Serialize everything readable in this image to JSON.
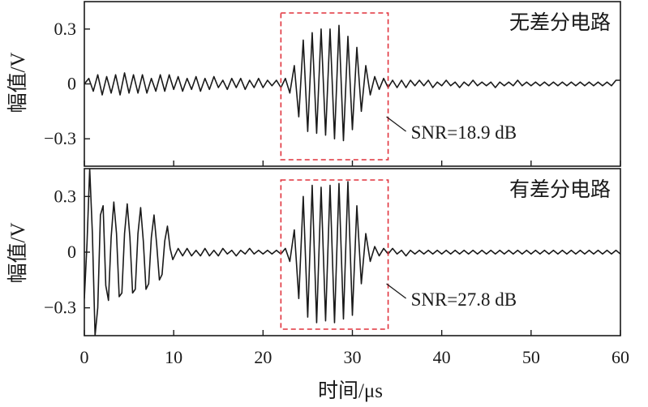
{
  "chart_data": [
    {
      "type": "line",
      "panel_label": "无差分电路",
      "ylabel": "幅值/V",
      "ylim": [
        -0.45,
        0.45
      ],
      "yticks": [
        {
          "value": 0.3,
          "label": "0.3"
        },
        {
          "value": 0,
          "label": "0"
        },
        {
          "value": -0.3,
          "label": "−0.3"
        }
      ],
      "xlim": [
        0,
        60
      ],
      "roi": {
        "x_range": [
          22,
          34
        ],
        "color": "#e0323c"
      },
      "annotation": {
        "label": "SNR=18.9 dB",
        "snr_db": 18.9
      },
      "series": [
        {
          "x": [
            0,
            0.5,
            1,
            1.5,
            2,
            2.5,
            3,
            3.5,
            4,
            4.5,
            5,
            5.5,
            6,
            6.5,
            7,
            7.5,
            8,
            8.5,
            9,
            9.5,
            10,
            10.5,
            11,
            11.5,
            12,
            12.5,
            13,
            13.5,
            14,
            14.5,
            15,
            15.5,
            16,
            16.5,
            17,
            17.5,
            18,
            18.5,
            19,
            19.5,
            20,
            20.5,
            21,
            21.5,
            22,
            22.5,
            23,
            23.5,
            24,
            24.5,
            25,
            25.5,
            26,
            26.5,
            27,
            27.5,
            28,
            28.5,
            29,
            29.5,
            30,
            30.5,
            31,
            31.5,
            32,
            32.5,
            33,
            33.5,
            34,
            34.5,
            35,
            35.5,
            36,
            36.5,
            37,
            37.5,
            38,
            38.5,
            39,
            39.5,
            40,
            40.5,
            41,
            41.5,
            42,
            42.5,
            43,
            43.5,
            44,
            44.5,
            45,
            45.5,
            46,
            46.5,
            47,
            47.5,
            48,
            48.5,
            49,
            49.5,
            50,
            50.5,
            51,
            51.5,
            52,
            52.5,
            53,
            53.5,
            54,
            54.5,
            55,
            55.5,
            56,
            56.5,
            57,
            57.5,
            58,
            58.5,
            59,
            59.5,
            60
          ],
          "y": [
            0,
            0.03,
            -0.04,
            0.05,
            -0.06,
            0.04,
            -0.05,
            0.05,
            -0.06,
            0.06,
            -0.05,
            0.05,
            -0.05,
            0.05,
            -0.05,
            0.03,
            -0.04,
            0.05,
            -0.04,
            0.05,
            -0.03,
            0.04,
            -0.04,
            0.03,
            -0.03,
            0.04,
            -0.04,
            0.03,
            -0.03,
            0.04,
            -0.02,
            0.02,
            -0.03,
            0.03,
            -0.02,
            0.03,
            -0.03,
            0.02,
            -0.02,
            0.03,
            -0.02,
            0.02,
            -0.01,
            0.02,
            -0.02,
            0.03,
            -0.05,
            0.1,
            -0.18,
            0.24,
            -0.26,
            0.28,
            -0.27,
            0.3,
            -0.28,
            0.3,
            -0.3,
            0.32,
            -0.31,
            0.26,
            -0.25,
            0.2,
            -0.15,
            0.1,
            -0.06,
            0.04,
            -0.03,
            0.03,
            -0.02,
            0.02,
            -0.02,
            0.02,
            -0.02,
            0.02,
            -0.01,
            0.02,
            -0.01,
            0.02,
            -0.02,
            0.01,
            -0.01,
            0.02,
            -0.01,
            0.01,
            -0.02,
            0.01,
            -0.01,
            0.02,
            -0.01,
            0.01,
            -0.01,
            0.01,
            -0.02,
            0.01,
            -0.01,
            0.01,
            -0.01,
            0.02,
            -0.01,
            0.01,
            -0.01,
            0.01,
            -0.01,
            0.01,
            -0.01,
            0.01,
            -0.01,
            0.01,
            -0.01,
            0.01,
            -0.01,
            0.01,
            -0.01,
            0.01,
            -0.01,
            0.01,
            -0.01,
            0.01,
            -0.01,
            0.02,
            0.02
          ]
        }
      ]
    },
    {
      "type": "line",
      "panel_label": "有差分电路",
      "ylabel": "幅值/V",
      "ylim": [
        -0.45,
        0.45
      ],
      "yticks": [
        {
          "value": 0.3,
          "label": "0.3"
        },
        {
          "value": 0,
          "label": "0"
        },
        {
          "value": -0.3,
          "label": "−0.3"
        }
      ],
      "xlim": [
        0,
        60
      ],
      "xlabel": "时间/μs",
      "xticks": [
        {
          "value": 0,
          "label": "0"
        },
        {
          "value": 10,
          "label": "10"
        },
        {
          "value": 20,
          "label": "20"
        },
        {
          "value": 30,
          "label": "30"
        },
        {
          "value": 40,
          "label": "40"
        },
        {
          "value": 50,
          "label": "50"
        },
        {
          "value": 60,
          "label": "60"
        }
      ],
      "roi": {
        "x_range": [
          22,
          34
        ],
        "color": "#e0323c"
      },
      "annotation": {
        "label": "SNR=27.8 dB",
        "snr_db": 27.8
      },
      "series": [
        {
          "x": [
            0,
            0.3,
            0.6,
            0.9,
            1.2,
            1.5,
            1.8,
            2.1,
            2.4,
            2.7,
            3,
            3.3,
            3.6,
            3.9,
            4.2,
            4.5,
            4.8,
            5.1,
            5.4,
            5.7,
            6,
            6.3,
            6.6,
            6.9,
            7.2,
            7.5,
            7.8,
            8.1,
            8.4,
            8.7,
            9,
            9.3,
            9.6,
            9.9,
            10.5,
            11,
            11.5,
            12,
            12.5,
            13,
            13.5,
            14,
            14.5,
            15,
            15.5,
            16,
            16.5,
            17,
            17.5,
            18,
            18.5,
            19,
            19.5,
            20,
            20.5,
            21,
            21.5,
            22,
            22.5,
            23,
            23.5,
            24,
            24.5,
            25,
            25.5,
            26,
            26.5,
            27,
            27.5,
            28,
            28.5,
            29,
            29.5,
            30,
            30.5,
            31,
            31.5,
            32,
            32.5,
            33,
            33.5,
            34,
            34.5,
            35,
            35.5,
            36,
            36.5,
            37,
            37.5,
            38,
            38.5,
            39,
            39.5,
            40,
            40.5,
            41,
            41.5,
            42,
            42.5,
            43,
            43.5,
            44,
            44.5,
            45,
            45.5,
            46,
            46.5,
            47,
            47.5,
            48,
            48.5,
            49,
            49.5,
            50,
            50.5,
            51,
            51.5,
            52,
            52.5,
            53,
            53.5,
            54,
            54.5,
            55,
            55.5,
            56,
            56.5,
            57,
            57.5,
            58,
            58.5,
            59,
            59.5,
            60
          ],
          "y": [
            -0.25,
            0.05,
            0.45,
            0.1,
            -0.45,
            -0.3,
            0.2,
            0.25,
            -0.18,
            -0.26,
            0.08,
            0.27,
            0.1,
            -0.24,
            -0.22,
            0.1,
            0.26,
            0.08,
            -0.22,
            -0.2,
            0.1,
            0.24,
            0.06,
            -0.2,
            -0.17,
            0.08,
            0.2,
            0.04,
            -0.15,
            -0.12,
            0.06,
            0.14,
            0.02,
            -0.04,
            0.02,
            -0.02,
            0.02,
            -0.02,
            0.01,
            -0.02,
            0.02,
            -0.02,
            0.01,
            -0.02,
            0.02,
            -0.01,
            0.01,
            -0.02,
            0.01,
            -0.01,
            0.02,
            -0.01,
            0.01,
            -0.01,
            0.01,
            -0.01,
            0.01,
            -0.01,
            0.02,
            -0.05,
            0.12,
            -0.25,
            0.3,
            -0.35,
            0.36,
            -0.38,
            0.35,
            -0.37,
            0.36,
            -0.38,
            0.37,
            -0.36,
            0.38,
            -0.34,
            0.25,
            -0.17,
            0.1,
            -0.05,
            0.03,
            -0.02,
            0.02,
            -0.01,
            0.02,
            -0.01,
            0.01,
            -0.02,
            0.01,
            -0.01,
            0.01,
            -0.01,
            0.01,
            -0.01,
            0.01,
            -0.01,
            0.01,
            -0.01,
            0.01,
            -0.01,
            0.01,
            -0.01,
            0.01,
            -0.01,
            0.01,
            -0.01,
            0.01,
            -0.01,
            0.01,
            -0.01,
            0.01,
            -0.01,
            0.01,
            -0.01,
            0.01,
            -0.01,
            0.01,
            -0.01,
            0.01,
            -0.01,
            0.01,
            -0.01,
            0.01,
            -0.01,
            0.01,
            -0.01,
            0.01,
            -0.01,
            0.01,
            -0.01,
            0.01,
            -0.01,
            0.01,
            -0.01,
            0.01,
            -0.01
          ]
        }
      ]
    }
  ]
}
